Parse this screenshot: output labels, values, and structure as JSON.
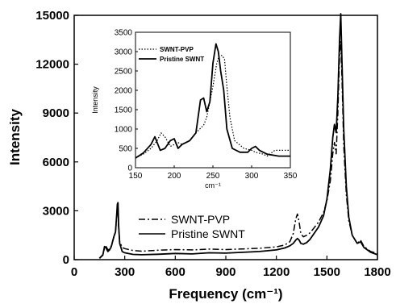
{
  "chart_data": [
    {
      "type": "line",
      "title": "",
      "xlabel": "Frequency (cm⁻¹)",
      "ylabel": "Intensity",
      "xlim": [
        0,
        1800
      ],
      "ylim": [
        0,
        15000
      ],
      "x_ticks": [
        0,
        300,
        600,
        900,
        1200,
        1500,
        1800
      ],
      "y_ticks": [
        0,
        3000,
        6000,
        9000,
        12000,
        15000
      ],
      "legend_position": "center-left",
      "series": [
        {
          "name": "SWNT-PVP",
          "style": "dash-dot",
          "color": "#000000",
          "x": [
            150,
            170,
            180,
            190,
            200,
            210,
            220,
            235,
            245,
            252,
            256,
            260,
            264,
            270,
            285,
            300,
            350,
            400,
            500,
            600,
            700,
            800,
            900,
            1000,
            1100,
            1200,
            1250,
            1280,
            1300,
            1315,
            1325,
            1335,
            1345,
            1360,
            1380,
            1400,
            1420,
            1450,
            1480,
            1500,
            1520,
            1535,
            1545,
            1555,
            1565,
            1575,
            1582,
            1590,
            1600,
            1615,
            1630,
            1650,
            1680,
            1700,
            1720,
            1760,
            1800
          ],
          "y": [
            100,
            300,
            700,
            800,
            600,
            650,
            850,
            1350,
            1700,
            2500,
            3100,
            3200,
            2000,
            1100,
            750,
            680,
            560,
            520,
            580,
            620,
            600,
            650,
            620,
            660,
            700,
            780,
            900,
            1100,
            1600,
            2500,
            2800,
            2300,
            1600,
            1400,
            1500,
            1650,
            1900,
            2300,
            2900,
            3600,
            4800,
            6500,
            7200,
            6500,
            9000,
            12500,
            13400,
            11000,
            7000,
            4000,
            2400,
            1500,
            1000,
            1200,
            800,
            500,
            380
          ]
        },
        {
          "name": "Pristine SWNT",
          "style": "solid",
          "color": "#000000",
          "x": [
            150,
            170,
            180,
            190,
            200,
            210,
            220,
            235,
            245,
            252,
            256,
            260,
            264,
            270,
            285,
            300,
            350,
            400,
            500,
            600,
            700,
            800,
            900,
            1000,
            1100,
            1200,
            1250,
            1280,
            1300,
            1315,
            1325,
            1335,
            1345,
            1360,
            1380,
            1400,
            1420,
            1450,
            1480,
            1500,
            1520,
            1535,
            1545,
            1555,
            1565,
            1575,
            1582,
            1590,
            1600,
            1615,
            1630,
            1650,
            1680,
            1700,
            1720,
            1760,
            1800
          ],
          "y": [
            80,
            280,
            800,
            700,
            500,
            600,
            800,
            1400,
            1700,
            2700,
            3400,
            3500,
            2100,
            1000,
            500,
            420,
            320,
            300,
            330,
            380,
            350,
            420,
            400,
            450,
            500,
            600,
            720,
            850,
            1000,
            1200,
            1300,
            1200,
            1000,
            950,
            1050,
            1250,
            1550,
            2000,
            2700,
            3700,
            5500,
            7500,
            8300,
            7800,
            10000,
            13500,
            15100,
            12000,
            8000,
            4500,
            2600,
            1500,
            1000,
            1100,
            750,
            450,
            300
          ]
        }
      ]
    },
    {
      "type": "line",
      "title": "",
      "xlabel": "cm⁻¹",
      "ylabel": "Intensity",
      "xlim": [
        150,
        350
      ],
      "ylim": [
        0,
        3500
      ],
      "x_ticks": [
        150,
        200,
        250,
        300,
        350
      ],
      "y_ticks": [
        0,
        500,
        1000,
        1500,
        2000,
        2500,
        3000,
        3500
      ],
      "legend_position": "top-left",
      "series": [
        {
          "name": "SWNT-PVP",
          "style": "dotted",
          "color": "#000000",
          "x": [
            150,
            160,
            170,
            178,
            183,
            188,
            195,
            200,
            205,
            210,
            220,
            228,
            233,
            238,
            242,
            246,
            250,
            255,
            258,
            262,
            265,
            268,
            272,
            278,
            290,
            300,
            305,
            315,
            320,
            330,
            340,
            350
          ],
          "y": [
            250,
            350,
            500,
            700,
            900,
            800,
            550,
            600,
            650,
            600,
            700,
            900,
            1000,
            1100,
            1300,
            1700,
            2100,
            2700,
            2900,
            2900,
            2800,
            2100,
            1300,
            700,
            500,
            450,
            400,
            350,
            300,
            450,
            450,
            450
          ]
        },
        {
          "name": "Pristine SWNT",
          "style": "solid",
          "color": "#000000",
          "x": [
            150,
            160,
            170,
            175,
            182,
            188,
            195,
            200,
            205,
            210,
            220,
            228,
            234,
            238,
            242,
            246,
            250,
            254,
            257,
            260,
            264,
            268,
            275,
            285,
            295,
            300,
            305,
            310,
            320,
            335,
            350
          ],
          "y": [
            250,
            380,
            600,
            800,
            450,
            500,
            700,
            750,
            500,
            600,
            700,
            900,
            1750,
            1800,
            1450,
            1700,
            2700,
            3200,
            3000,
            2500,
            2000,
            1000,
            500,
            400,
            400,
            500,
            550,
            450,
            350,
            300,
            300
          ]
        }
      ]
    }
  ]
}
